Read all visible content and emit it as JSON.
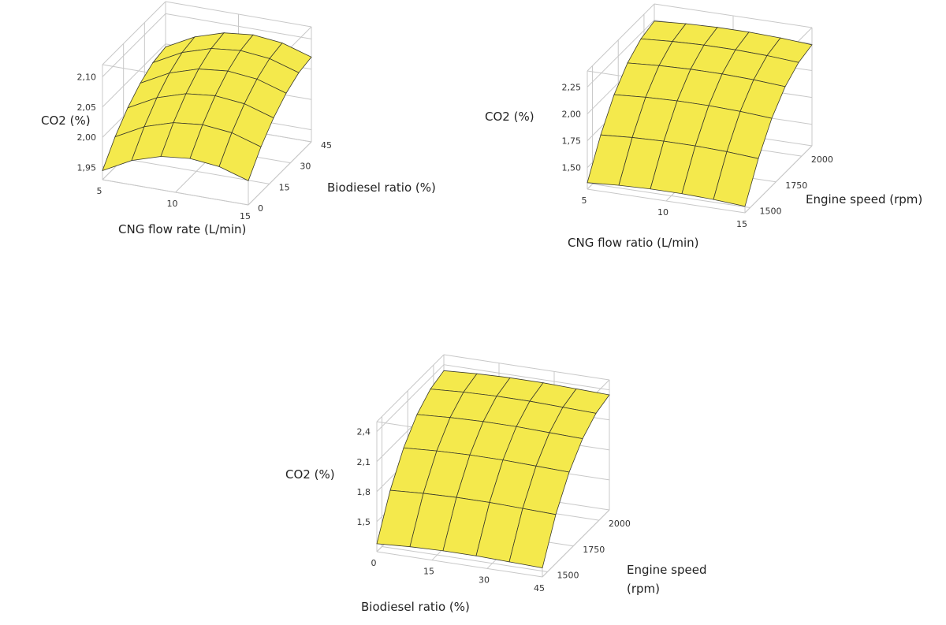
{
  "chart_data": [
    {
      "type": "surface",
      "zlabel": "CO2 (%)",
      "xlabel": "CNG flow rate (L/min)",
      "ylabel": "Biodiesel ratio (%)",
      "x": [
        5,
        7,
        9,
        11,
        13,
        15
      ],
      "y": [
        0,
        9,
        18,
        27,
        36,
        45
      ],
      "z": [
        [
          1.945,
          1.97,
          1.985,
          1.99,
          1.985,
          1.97
        ],
        [
          1.98,
          2.005,
          2.02,
          2.025,
          2.02,
          2.005
        ],
        [
          2.007,
          2.032,
          2.047,
          2.052,
          2.047,
          2.032
        ],
        [
          2.027,
          2.052,
          2.067,
          2.072,
          2.067,
          2.052
        ],
        [
          2.04,
          2.065,
          2.08,
          2.085,
          2.08,
          2.065
        ],
        [
          2.045,
          2.07,
          2.085,
          2.09,
          2.085,
          2.07
        ]
      ],
      "xlim": [
        5,
        15
      ],
      "ylim": [
        0,
        45
      ],
      "zlim": [
        1.93,
        2.12
      ],
      "xticks": [
        5,
        10,
        15
      ],
      "yticks": [
        0,
        15,
        30,
        45
      ],
      "zticks": [
        {
          "value": 1.95,
          "label": "1,95"
        },
        {
          "value": 2.0,
          "label": "2,00"
        },
        {
          "value": 2.05,
          "label": "2,05"
        },
        {
          "value": 2.1,
          "label": "2,10"
        }
      ],
      "color": "#f4e94c",
      "grid": true
    },
    {
      "type": "surface",
      "zlabel": "CO2 (%)",
      "xlabel": "CNG flow ratio (L/min)",
      "ylabel": "Engine speed (rpm)",
      "x": [
        5,
        7,
        9,
        11,
        13,
        15
      ],
      "y": [
        1450,
        1580,
        1710,
        1840,
        1970,
        2100
      ],
      "z": [
        [
          1.36,
          1.38,
          1.39,
          1.39,
          1.38,
          1.36
        ],
        [
          1.68,
          1.7,
          1.71,
          1.71,
          1.7,
          1.68
        ],
        [
          1.93,
          1.95,
          1.96,
          1.96,
          1.95,
          1.93
        ],
        [
          2.1,
          2.12,
          2.13,
          2.13,
          2.12,
          2.1
        ],
        [
          2.2,
          2.22,
          2.23,
          2.23,
          2.22,
          2.2
        ],
        [
          2.24,
          2.26,
          2.27,
          2.27,
          2.26,
          2.24
        ]
      ],
      "xlim": [
        5,
        15
      ],
      "ylim": [
        1450,
        2100
      ],
      "zlim": [
        1.3,
        2.4
      ],
      "xticks": [
        5,
        10,
        15
      ],
      "yticks": [
        1500,
        1750,
        2000
      ],
      "zticks": [
        {
          "value": 1.5,
          "label": "1,50"
        },
        {
          "value": 1.75,
          "label": "1,75"
        },
        {
          "value": 2.0,
          "label": "2,00"
        },
        {
          "value": 2.25,
          "label": "2,25"
        }
      ],
      "color": "#f4e94c",
      "grid": true
    },
    {
      "type": "surface",
      "zlabel": "CO2 (%)",
      "xlabel": "Biodiesel ratio (%)",
      "ylabel": [
        "Engine speed",
        "(rpm)"
      ],
      "x": [
        0,
        9,
        18,
        27,
        36,
        45
      ],
      "y": [
        1450,
        1580,
        1710,
        1840,
        1970,
        2100
      ],
      "z": [
        [
          1.28,
          1.3,
          1.31,
          1.31,
          1.3,
          1.29
        ],
        [
          1.68,
          1.7,
          1.71,
          1.71,
          1.7,
          1.69
        ],
        [
          1.97,
          1.99,
          2.0,
          2.0,
          1.99,
          1.98
        ],
        [
          2.17,
          2.19,
          2.2,
          2.2,
          2.19,
          2.18
        ],
        [
          2.29,
          2.31,
          2.32,
          2.32,
          2.31,
          2.3
        ],
        [
          2.34,
          2.36,
          2.37,
          2.37,
          2.36,
          2.35
        ]
      ],
      "xlim": [
        0,
        45
      ],
      "ylim": [
        1450,
        2100
      ],
      "zlim": [
        1.2,
        2.5
      ],
      "xticks": [
        0,
        15,
        30,
        45
      ],
      "yticks": [
        1500,
        1750,
        2000
      ],
      "zticks": [
        {
          "value": 1.5,
          "label": "1,5"
        },
        {
          "value": 1.8,
          "label": "1,8"
        },
        {
          "value": 2.1,
          "label": "2,1"
        },
        {
          "value": 2.4,
          "label": "2,4"
        }
      ],
      "color": "#f4e94c",
      "grid": true
    }
  ]
}
